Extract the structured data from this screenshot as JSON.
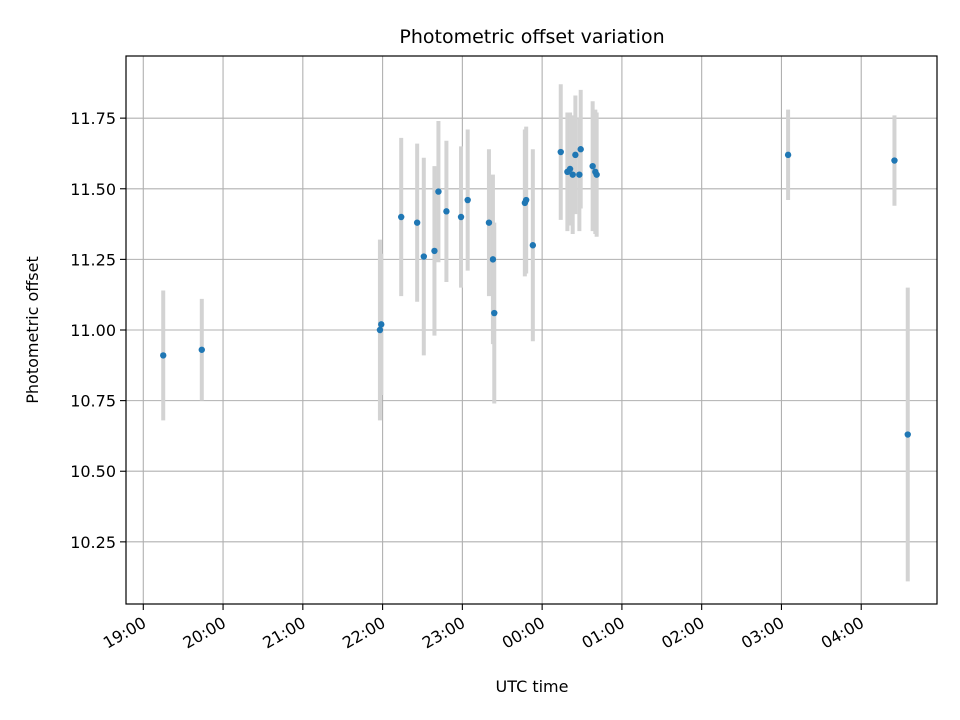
{
  "chart_data": {
    "type": "scatter",
    "title": "Photometric offset variation",
    "xlabel": "UTC time",
    "ylabel": "Photometric offset",
    "grid": true,
    "x_ticks": [
      "19:00",
      "20:00",
      "21:00",
      "22:00",
      "23:00",
      "00:00",
      "01:00",
      "02:00",
      "03:00",
      "04:00"
    ],
    "y_ticks": [
      "10.25",
      "10.50",
      "10.75",
      "11.00",
      "11.25",
      "11.50",
      "11.75"
    ],
    "xlim": [
      "18:47",
      "04:57"
    ],
    "ylim": [
      10.03,
      11.97
    ],
    "point_color": "#1f77b4",
    "errorbar_color": "#d3d3d3",
    "grid_color": "#b0b0b0",
    "points": [
      {
        "t": "19:15",
        "y": 10.91,
        "err": 0.23
      },
      {
        "t": "19:44",
        "y": 10.93,
        "err": 0.18
      },
      {
        "t": "21:58",
        "y": 11.0,
        "err": 0.32
      },
      {
        "t": "21:59",
        "y": 11.02,
        "err": 0.25
      },
      {
        "t": "22:14",
        "y": 11.4,
        "err": 0.28
      },
      {
        "t": "22:26",
        "y": 11.38,
        "err": 0.28
      },
      {
        "t": "22:31",
        "y": 11.26,
        "err": 0.35
      },
      {
        "t": "22:39",
        "y": 11.28,
        "err": 0.3
      },
      {
        "t": "22:42",
        "y": 11.49,
        "err": 0.25
      },
      {
        "t": "22:48",
        "y": 11.42,
        "err": 0.25
      },
      {
        "t": "22:59",
        "y": 11.4,
        "err": 0.25
      },
      {
        "t": "23:04",
        "y": 11.46,
        "err": 0.25
      },
      {
        "t": "23:20",
        "y": 11.38,
        "err": 0.26
      },
      {
        "t": "23:23",
        "y": 11.25,
        "err": 0.3
      },
      {
        "t": "23:24",
        "y": 11.06,
        "err": 0.32
      },
      {
        "t": "23:47",
        "y": 11.45,
        "err": 0.26
      },
      {
        "t": "23:48",
        "y": 11.46,
        "err": 0.26
      },
      {
        "t": "23:53",
        "y": 11.3,
        "err": 0.34
      },
      {
        "t": "00:14",
        "y": 11.63,
        "err": 0.24
      },
      {
        "t": "00:19",
        "y": 11.56,
        "err": 0.21
      },
      {
        "t": "00:21",
        "y": 11.57,
        "err": 0.2
      },
      {
        "t": "00:23",
        "y": 11.55,
        "err": 0.21
      },
      {
        "t": "00:25",
        "y": 11.62,
        "err": 0.21
      },
      {
        "t": "00:28",
        "y": 11.55,
        "err": 0.2
      },
      {
        "t": "00:29",
        "y": 11.64,
        "err": 0.21
      },
      {
        "t": "00:38",
        "y": 11.58,
        "err": 0.23
      },
      {
        "t": "00:40",
        "y": 11.56,
        "err": 0.22
      },
      {
        "t": "00:41",
        "y": 11.55,
        "err": 0.22
      },
      {
        "t": "03:05",
        "y": 11.62,
        "err": 0.16
      },
      {
        "t": "04:25",
        "y": 11.6,
        "err": 0.16
      },
      {
        "t": "04:35",
        "y": 10.63,
        "err": 0.52
      }
    ]
  }
}
